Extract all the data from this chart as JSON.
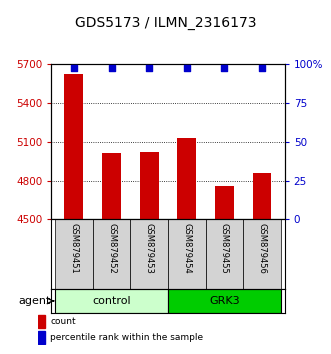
{
  "title": "GDS5173 / ILMN_2316173",
  "samples": [
    "GSM879451",
    "GSM879452",
    "GSM879453",
    "GSM879454",
    "GSM879455",
    "GSM879456"
  ],
  "counts": [
    5620,
    5010,
    5020,
    5130,
    4760,
    4860
  ],
  "percentiles": [
    97,
    97,
    97,
    97,
    97,
    97
  ],
  "ylim_left": [
    4500,
    5700
  ],
  "ylim_right": [
    0,
    100
  ],
  "yticks_left": [
    4500,
    4800,
    5100,
    5400,
    5700
  ],
  "yticks_right": [
    0,
    25,
    50,
    75,
    100
  ],
  "ytick_labels_right": [
    "0",
    "25",
    "50",
    "75",
    "100%"
  ],
  "bar_color": "#cc0000",
  "dot_color": "#0000cc",
  "groups": [
    {
      "label": "control",
      "indices": [
        0,
        1,
        2
      ],
      "color": "#ccffcc"
    },
    {
      "label": "GRK3",
      "indices": [
        3,
        4,
        5
      ],
      "color": "#00cc00"
    }
  ],
  "agent_label": "agent",
  "legend_count_label": "count",
  "legend_percentile_label": "percentile rank within the sample",
  "title_fontsize": 10,
  "tick_label_fontsize": 7.5,
  "bar_width": 0.5,
  "sample_label_fontsize": 6.0,
  "group_label_fontsize": 8.0,
  "legend_fontsize": 6.5
}
